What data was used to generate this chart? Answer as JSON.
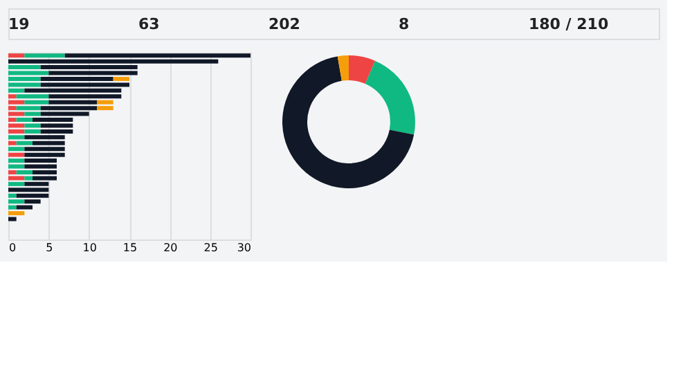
{
  "chart_data": [
    {
      "type": "other",
      "annotations": [
        "19",
        "63",
        "202",
        "8",
        "180 / 210"
      ]
    },
    {
      "type": "bar",
      "orientation": "horizontal",
      "stacked": true,
      "legend": false,
      "grid": "x",
      "tick_labels": "x",
      "categories": [
        null,
        null,
        null,
        null,
        null,
        null,
        null,
        null,
        null,
        null,
        null,
        null,
        null,
        null,
        null,
        null,
        null,
        null,
        null,
        null,
        null,
        null,
        null,
        null,
        null,
        null,
        null,
        null,
        null,
        null,
        null,
        null
      ],
      "xlim": [
        0,
        30
      ],
      "xticks": [
        0,
        5,
        10,
        15,
        20,
        25,
        30
      ],
      "series": [
        {
          "color": "#ef4444",
          "values": [
            2,
            0,
            0,
            0,
            0,
            0,
            0,
            1,
            2,
            1,
            2,
            1,
            2,
            2,
            0,
            1,
            0,
            2,
            0,
            0,
            1,
            2,
            0,
            0,
            0,
            0,
            0,
            0,
            0,
            0,
            0,
            0
          ]
        },
        {
          "color": "#10b981",
          "values": [
            5,
            0,
            4,
            5,
            4,
            4,
            2,
            4,
            3,
            3,
            2,
            2,
            2,
            2,
            2,
            2,
            2,
            0,
            2,
            2,
            2,
            1,
            2,
            0,
            1,
            2,
            1,
            0,
            0,
            0,
            0,
            0
          ]
        },
        {
          "color": "#111827",
          "values": [
            23,
            26,
            12,
            11,
            9,
            11,
            12,
            9,
            6,
            7,
            6,
            5,
            4,
            4,
            5,
            4,
            5,
            5,
            4,
            4,
            3,
            3,
            3,
            5,
            4,
            2,
            2,
            0,
            1,
            0,
            0,
            0
          ]
        },
        {
          "color": "#f59e0b",
          "values": [
            0,
            0,
            0,
            0,
            2,
            0,
            0,
            0,
            2,
            2,
            0,
            0,
            0,
            0,
            0,
            0,
            0,
            0,
            0,
            0,
            0,
            0,
            0,
            0,
            0,
            0,
            0,
            2,
            0,
            0,
            0,
            0
          ]
        }
      ]
    },
    {
      "type": "donut",
      "legend": false,
      "categories": [
        null,
        null,
        null,
        null
      ],
      "values": [
        6.5,
        21.6,
        69.2,
        2.7
      ],
      "colors": [
        "#ef4444",
        "#10b981",
        "#111827",
        "#f59e0b"
      ]
    }
  ]
}
